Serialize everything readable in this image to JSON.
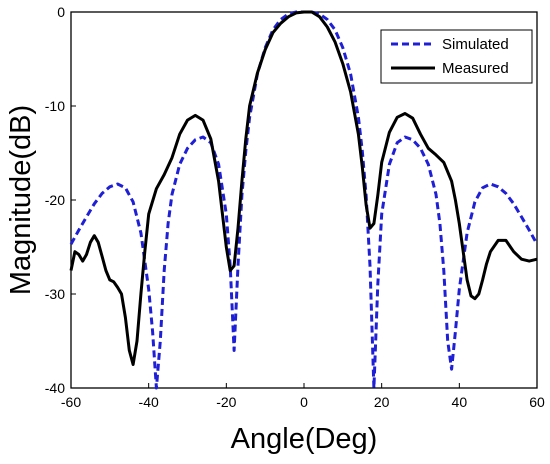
{
  "chart_data": {
    "type": "line",
    "title": "",
    "xlabel": "Angle(Deg)",
    "ylabel": "Magnitude(dB)",
    "xlim": [
      -60,
      60
    ],
    "ylim": [
      -40,
      0
    ],
    "x_ticks": [
      -60,
      -40,
      -20,
      0,
      20,
      40,
      60
    ],
    "y_ticks": [
      0,
      -10,
      -20,
      -30,
      -40
    ],
    "grid": false,
    "legend_position": "top-right",
    "series": [
      {
        "name": "Simulated",
        "color": "#1f1fd6",
        "style": "dashed",
        "x": [
          -60,
          -58,
          -56,
          -54,
          -52,
          -50,
          -48,
          -46,
          -44,
          -42,
          -40,
          -39,
          -38,
          -37,
          -36,
          -35,
          -34,
          -32,
          -30,
          -28,
          -26,
          -24,
          -22,
          -20,
          -19,
          -18,
          -17,
          -16,
          -15,
          -14,
          -12,
          -10,
          -8,
          -6,
          -4,
          -2,
          0,
          2,
          4,
          6,
          8,
          10,
          12,
          14,
          15,
          16,
          17,
          18,
          19,
          20,
          22,
          24,
          26,
          28,
          30,
          32,
          34,
          35,
          36,
          37,
          38,
          39,
          40,
          42,
          44,
          46,
          48,
          50,
          52,
          54,
          56,
          58,
          60
        ],
        "y": [
          -24.7,
          -23.2,
          -21.8,
          -20.4,
          -19.3,
          -18.6,
          -18.3,
          -18.7,
          -20.2,
          -23.5,
          -29.5,
          -34,
          -40,
          -35,
          -27.5,
          -22.5,
          -19.4,
          -16.2,
          -14.5,
          -13.6,
          -13.3,
          -13.9,
          -16.2,
          -21.5,
          -27,
          -36,
          -27,
          -19.5,
          -14.8,
          -11.2,
          -6.6,
          -3.8,
          -1.9,
          -0.8,
          -0.2,
          0,
          0,
          0,
          -0.2,
          -0.8,
          -1.9,
          -3.8,
          -6.6,
          -11.2,
          -14.8,
          -19.5,
          -27,
          -40,
          -29,
          -21.5,
          -16.2,
          -13.9,
          -13.3,
          -13.6,
          -14.5,
          -16.2,
          -19.4,
          -22.5,
          -27.5,
          -35,
          -38,
          -34,
          -29.5,
          -23.5,
          -20.2,
          -18.7,
          -18.3,
          -18.6,
          -19.3,
          -20.4,
          -21.8,
          -23.2,
          -24.7
        ]
      },
      {
        "name": "Measured",
        "color": "#000000",
        "style": "solid",
        "x": [
          -60,
          -59,
          -58,
          -57,
          -56,
          -55,
          -54,
          -53,
          -52,
          -51,
          -50,
          -49,
          -48,
          -47,
          -46,
          -45,
          -44,
          -43,
          -42,
          -41,
          -40,
          -38,
          -36,
          -34,
          -32,
          -30,
          -28,
          -26,
          -24,
          -22,
          -20,
          -19,
          -18,
          -17,
          -16,
          -15,
          -14,
          -12,
          -10,
          -8,
          -6,
          -4,
          -2,
          0,
          2,
          4,
          6,
          8,
          10,
          12,
          14,
          15,
          16,
          17,
          18,
          19,
          20,
          22,
          24,
          26,
          28,
          30,
          32,
          34,
          36,
          38,
          39,
          40,
          41,
          42,
          43,
          44,
          45,
          46,
          47,
          48,
          50,
          52,
          54,
          56,
          58,
          60
        ],
        "y": [
          -27.5,
          -25.5,
          -25.8,
          -26.5,
          -25.8,
          -24.5,
          -23.8,
          -24.5,
          -26,
          -27.5,
          -28.5,
          -28.7,
          -29.3,
          -30,
          -32.5,
          -36,
          -37.5,
          -35,
          -30,
          -25.5,
          -21.5,
          -18.8,
          -17.3,
          -15.5,
          -13,
          -11.5,
          -11,
          -11.5,
          -13.5,
          -18,
          -25,
          -27.5,
          -27,
          -23,
          -18,
          -13.5,
          -10,
          -6.5,
          -4,
          -2.2,
          -1.2,
          -0.5,
          -0.1,
          0,
          0,
          -0.5,
          -1.6,
          -3.2,
          -5.5,
          -8.5,
          -13,
          -16.5,
          -20.5,
          -23,
          -22.5,
          -19.5,
          -16,
          -12.8,
          -11.2,
          -10.8,
          -11.3,
          -13,
          -14.5,
          -15.2,
          -16,
          -18,
          -20,
          -22.5,
          -25.5,
          -28.5,
          -30.2,
          -30.5,
          -30,
          -28.5,
          -26.8,
          -25.5,
          -24.3,
          -24.3,
          -25.5,
          -26.3,
          -26.5,
          -26.3
        ]
      }
    ]
  }
}
